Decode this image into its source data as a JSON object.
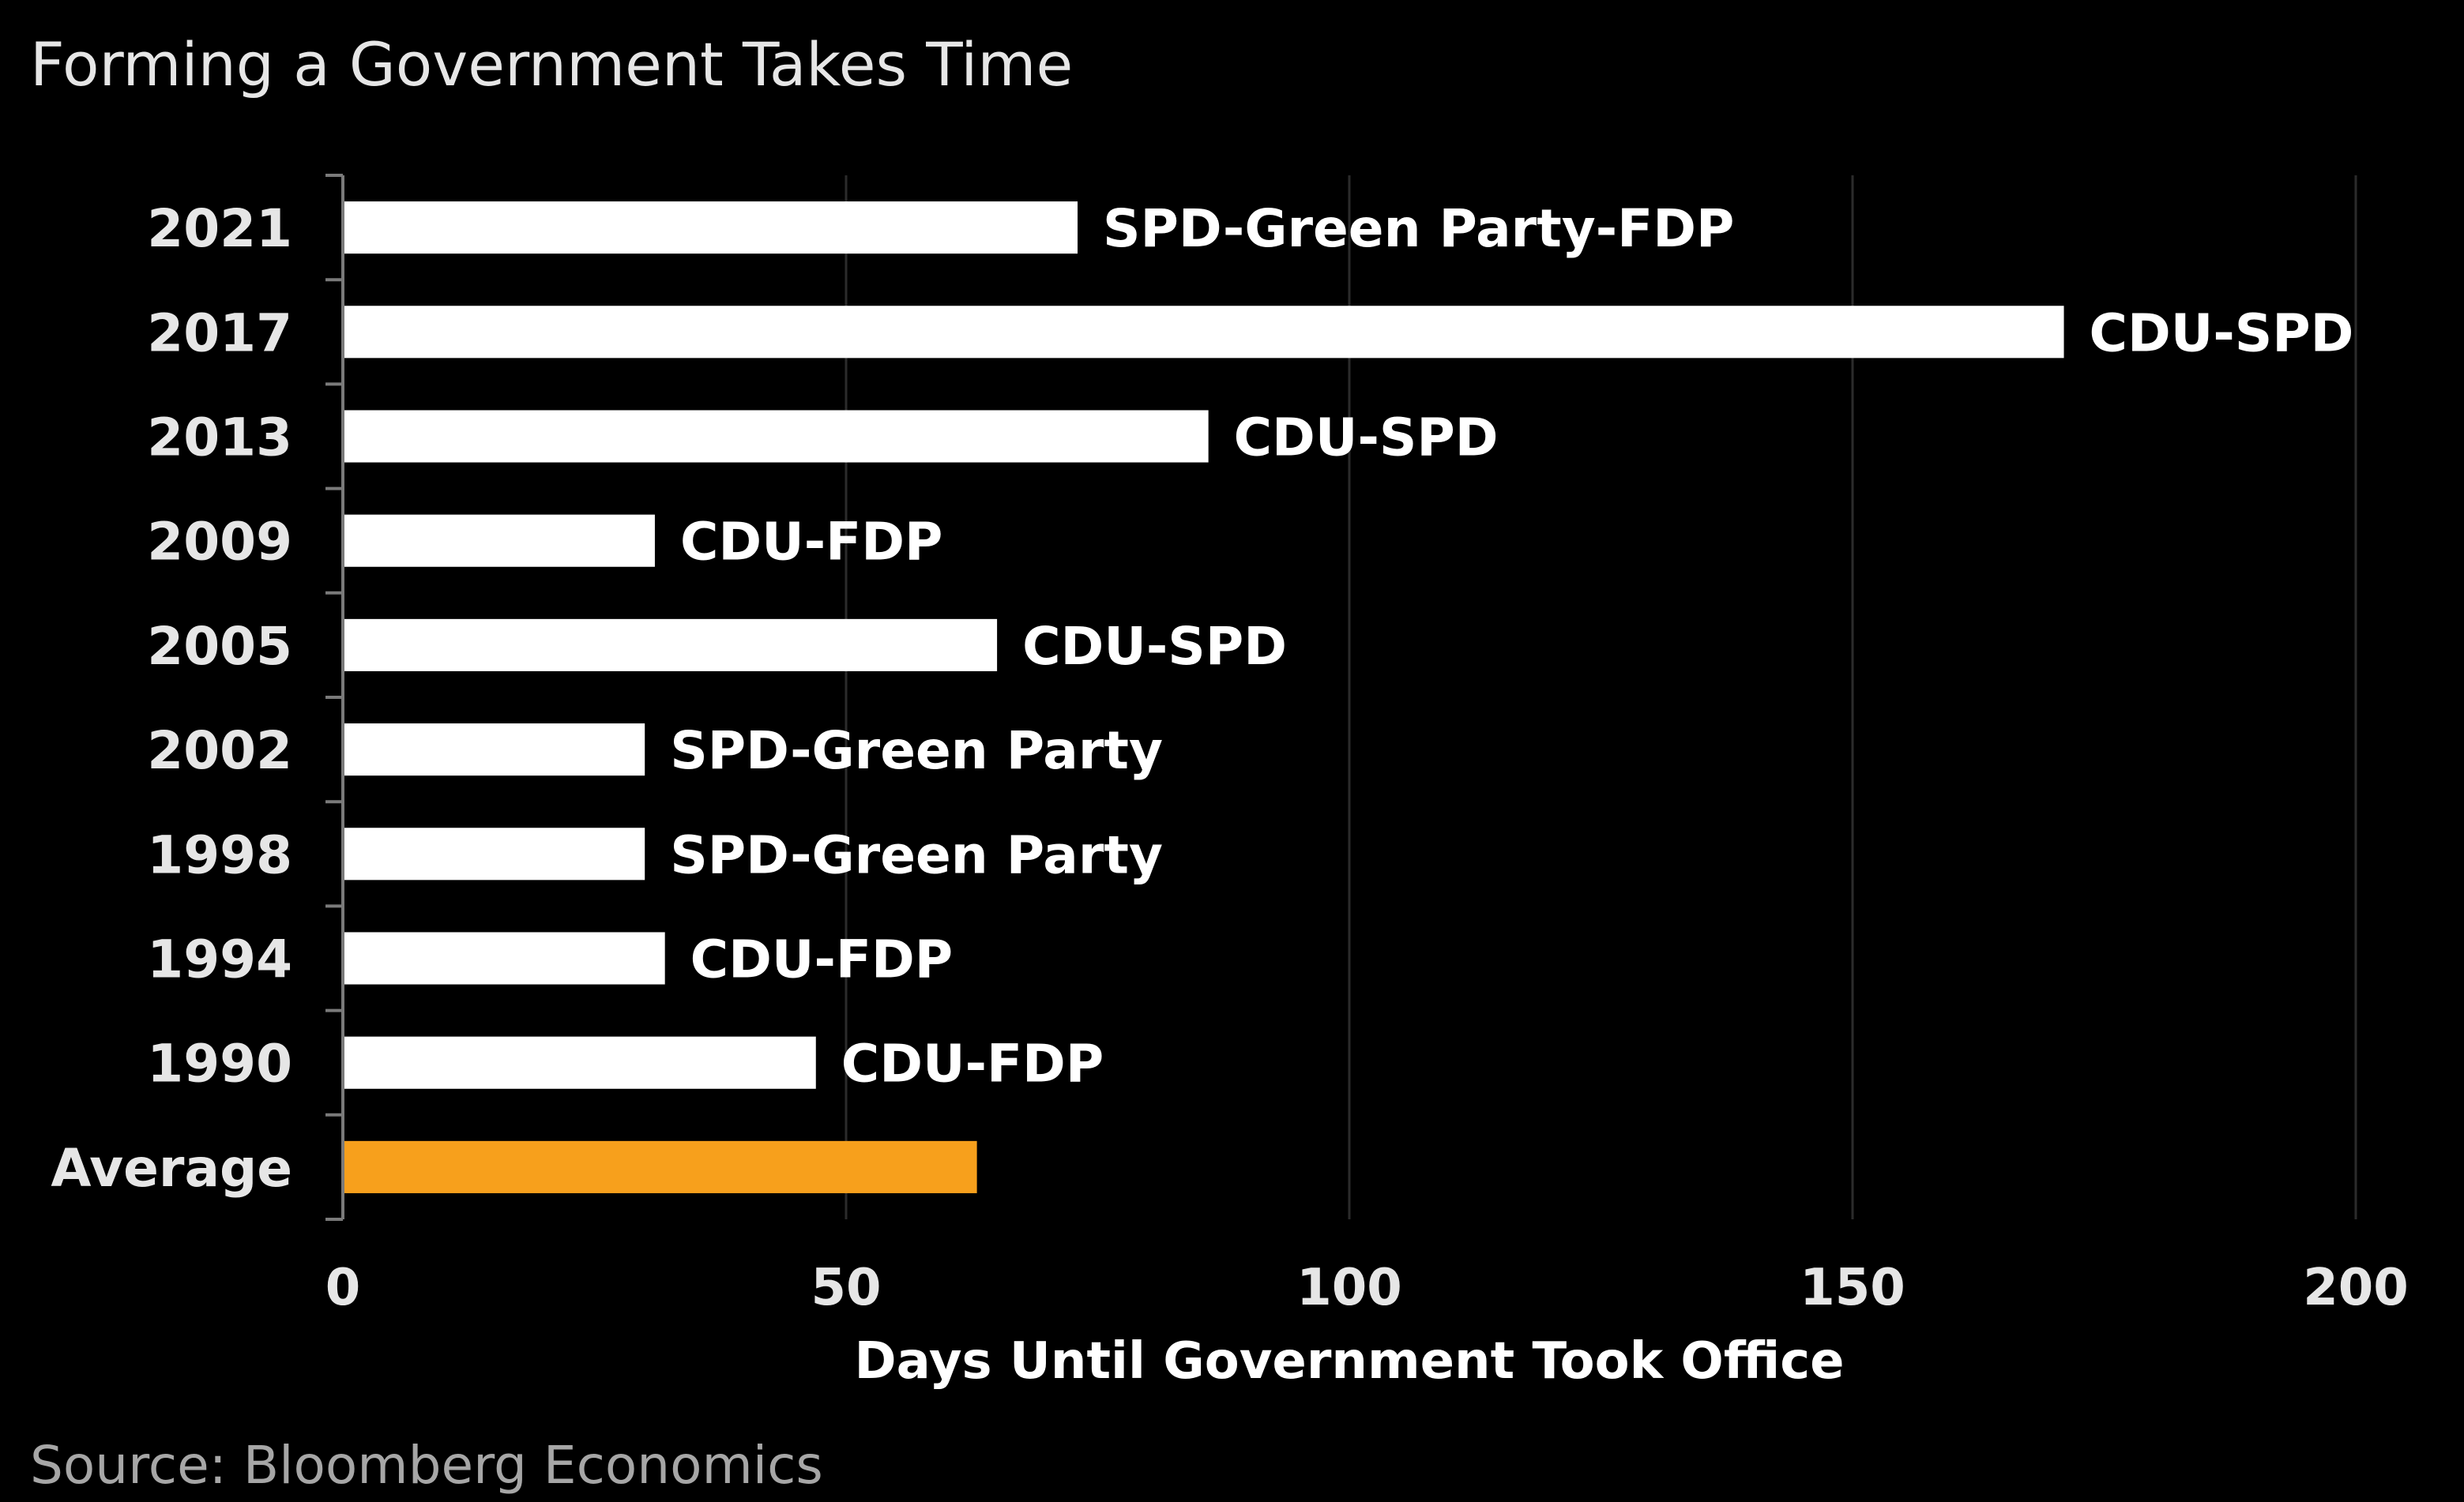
{
  "chart_data": {
    "type": "bar",
    "orientation": "horizontal",
    "title": "Forming a Government Takes Time",
    "xlabel": "Days Until Government Took Office",
    "ylabel": "",
    "xlim": [
      0,
      200
    ],
    "xticks": [
      0,
      50,
      100,
      150,
      200
    ],
    "grid": true,
    "categories": [
      "2021",
      "2017",
      "2013",
      "2009",
      "2005",
      "2002",
      "1998",
      "1994",
      "1990",
      "Average"
    ],
    "values": [
      73,
      171,
      86,
      31,
      65,
      30,
      30,
      32,
      47,
      63
    ],
    "bar_labels": [
      "SPD-Green Party-FDP",
      "CDU-SPD",
      "CDU-SPD",
      "CDU-FDP",
      "CDU-SPD",
      "SPD-Green Party",
      "SPD-Green Party",
      "CDU-FDP",
      "CDU-FDP",
      ""
    ],
    "colors": {
      "bar": "#ffffff",
      "highlight": "#f7a01c",
      "background": "#000000"
    },
    "highlight_category": "Average"
  },
  "source": "Source: Bloomberg Economics"
}
